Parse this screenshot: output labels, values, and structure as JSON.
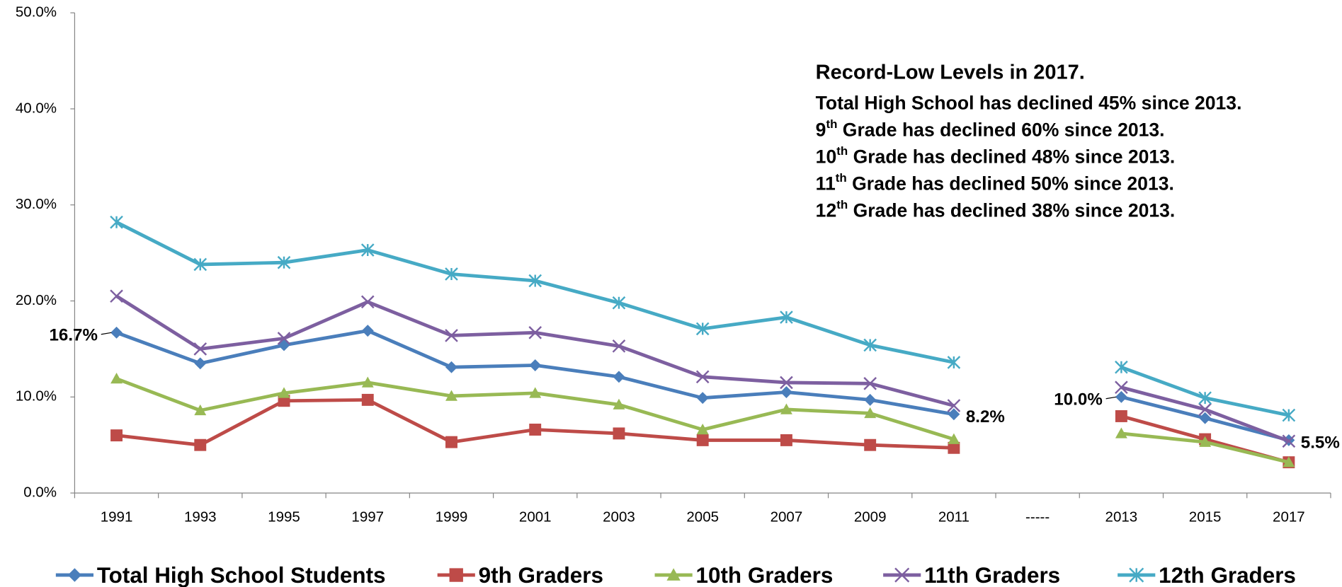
{
  "chart_data": {
    "type": "line",
    "categories": [
      "1991",
      "1993",
      "1995",
      "1997",
      "1999",
      "2001",
      "2003",
      "2005",
      "2007",
      "2009",
      "2011",
      "-----",
      "2013",
      "2015",
      "2017"
    ],
    "ylim": [
      0,
      50
    ],
    "yticks": [
      {
        "value": 0,
        "label": "0.0%"
      },
      {
        "value": 10,
        "label": "10.0%"
      },
      {
        "value": 20,
        "label": "20.0%"
      },
      {
        "value": 30,
        "label": "30.0%"
      },
      {
        "value": 40,
        "label": "40.0%"
      },
      {
        "value": 50,
        "label": "50.0%"
      }
    ],
    "series": [
      {
        "name": "Total High School Students",
        "color": "#4a7ebb",
        "marker": "diamond",
        "values": [
          16.7,
          13.5,
          15.4,
          16.9,
          13.1,
          13.3,
          12.1,
          9.9,
          10.5,
          9.7,
          8.2,
          null,
          10.0,
          7.8,
          5.5
        ],
        "value_labels": [
          "16.7%",
          null,
          null,
          null,
          null,
          null,
          null,
          null,
          null,
          null,
          "8.2%",
          null,
          "10.0%",
          null,
          "5.5%"
        ]
      },
      {
        "name": "9th Graders",
        "color": "#be4b48",
        "marker": "square",
        "values": [
          6.0,
          5.0,
          9.6,
          9.7,
          5.3,
          6.6,
          6.2,
          5.5,
          5.5,
          5.0,
          4.7,
          null,
          8.0,
          5.6,
          3.2
        ]
      },
      {
        "name": "10th Graders",
        "color": "#98b954",
        "marker": "triangle",
        "values": [
          11.9,
          8.6,
          10.4,
          11.5,
          10.1,
          10.4,
          9.2,
          6.6,
          8.7,
          8.3,
          5.6,
          null,
          6.2,
          5.3,
          3.2
        ]
      },
      {
        "name": "11th Graders",
        "color": "#7d5fa0",
        "marker": "x",
        "values": [
          20.5,
          15.0,
          16.1,
          19.9,
          16.4,
          16.7,
          15.3,
          12.1,
          11.5,
          11.4,
          9.1,
          null,
          11.0,
          8.7,
          5.4
        ]
      },
      {
        "name": "12th Graders",
        "color": "#46aac5",
        "marker": "star",
        "values": [
          28.2,
          23.8,
          24.0,
          25.3,
          22.8,
          22.1,
          19.8,
          17.1,
          18.3,
          15.4,
          13.6,
          null,
          13.1,
          9.9,
          8.1
        ]
      }
    ],
    "annotation": {
      "title": "Record-Low Levels in 2017.",
      "lines": [
        {
          "text": "Total High School has declined 45% since 2013."
        },
        {
          "num": "9",
          "sup": "th",
          "text": " Grade has declined 60% since 2013."
        },
        {
          "num": "10",
          "sup": "th",
          "text": " Grade has declined 48% since 2013."
        },
        {
          "num": "11",
          "sup": "th",
          "text": " Grade has declined 50% since 2013."
        },
        {
          "num": "12",
          "sup": "th",
          "text": " Grade has declined 38% since 2013."
        }
      ]
    }
  }
}
